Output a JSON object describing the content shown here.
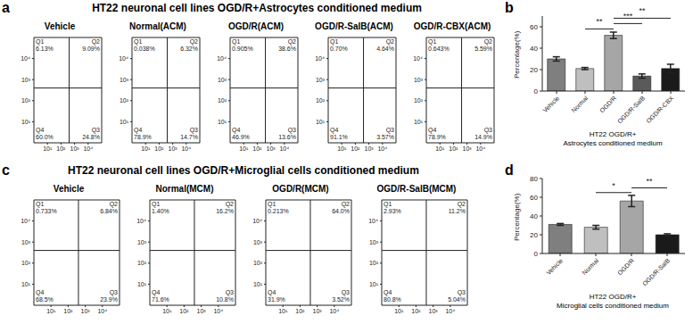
{
  "chart_data": [
    {
      "type": "quadrant",
      "panel": "a",
      "title": "HT22 neuronal cell lines OGD/R+Astrocytes conditioned medium",
      "log": true,
      "xlim": [
        1,
        100000
      ],
      "ylim": [
        1,
        100000
      ],
      "xticks": [
        {
          "value": 10,
          "label": "10¹"
        },
        {
          "value": 100,
          "label": "10²"
        },
        {
          "value": 1000,
          "label": "10³"
        },
        {
          "value": 10000,
          "label": "10⁴"
        }
      ],
      "yticks": [
        {
          "value": 10,
          "label": "10¹"
        },
        {
          "value": 100,
          "label": "10²"
        },
        {
          "value": 1000,
          "label": "10³"
        },
        {
          "value": 10000,
          "label": "10⁴"
        }
      ],
      "gate": [
        400,
        400
      ],
      "plots": [
        {
          "title": "Vehicle",
          "quadrants": [
            {
              "name": "Q1",
              "value": 6.13,
              "label": "6.13%"
            },
            {
              "name": "Q2",
              "value": 9.09,
              "label": "9.09%"
            },
            {
              "name": "Q3",
              "value": 24.8,
              "label": "24.8%"
            },
            {
              "name": "Q4",
              "value": 60.0,
              "label": "60.0%"
            }
          ]
        },
        {
          "title": "Normal(ACM)",
          "quadrants": [
            {
              "name": "Q1",
              "value": 0.038,
              "label": "0.038%"
            },
            {
              "name": "Q2",
              "value": 6.32,
              "label": "6.32%"
            },
            {
              "name": "Q3",
              "value": 14.7,
              "label": "14.7%"
            },
            {
              "name": "Q4",
              "value": 78.9,
              "label": "78.9%"
            }
          ]
        },
        {
          "title": "OGD/R(ACM)",
          "quadrants": [
            {
              "name": "Q1",
              "value": 0.905,
              "label": "0.905%"
            },
            {
              "name": "Q2",
              "value": 38.6,
              "label": "38.6%"
            },
            {
              "name": "Q3",
              "value": 13.6,
              "label": "13.6%"
            },
            {
              "name": "Q4",
              "value": 46.9,
              "label": "46.9%"
            }
          ]
        },
        {
          "title": "OGD/R-SalB(ACM)",
          "quadrants": [
            {
              "name": "Q1",
              "value": 0.7,
              "label": "0.70%"
            },
            {
              "name": "Q2",
              "value": 4.64,
              "label": "4.64%"
            },
            {
              "name": "Q3",
              "value": 3.57,
              "label": "3.57%"
            },
            {
              "name": "Q4",
              "value": 91.1,
              "label": "91.1%"
            }
          ]
        },
        {
          "title": "OGD/R-CBX(ACM)",
          "quadrants": [
            {
              "name": "Q1",
              "value": 0.643,
              "label": "0.643%"
            },
            {
              "name": "Q2",
              "value": 5.59,
              "label": "5.59%"
            },
            {
              "name": "Q3",
              "value": 14.9,
              "label": "14.9%"
            },
            {
              "name": "Q4",
              "value": 78.9,
              "label": "78.9%"
            }
          ]
        }
      ]
    },
    {
      "type": "bar",
      "panel": "b",
      "ylabel": "Percentage(%)",
      "xlabel": [
        "HT22 OGD/R+",
        "Astrocytes conditioned medium"
      ],
      "categories": [
        "Vehicle",
        "Normal",
        "OGD/R",
        "OGD/R-SalB",
        "OGD/R-CBX"
      ],
      "values": [
        30,
        21,
        52,
        14,
        21
      ],
      "errors": [
        2,
        1,
        3,
        2,
        4
      ],
      "colors": [
        "#7f7f7f",
        "#bfbfbf",
        "#a6a6a6",
        "#595959",
        "#1a1a1a"
      ],
      "ylim": [
        0,
        70
      ],
      "yticks": [
        0,
        20,
        40,
        60
      ],
      "grid": false,
      "annotations": [
        {
          "from": "Normal",
          "to": "OGD/R",
          "label": "**"
        },
        {
          "from": "OGD/R",
          "to": "OGD/R-SalB",
          "label": "***"
        },
        {
          "from": "OGD/R",
          "to": "OGD/R-CBX",
          "label": "**"
        }
      ]
    },
    {
      "type": "quadrant",
      "panel": "c",
      "title": "HT22 neuronal cell lines OGD/R+Microglial cells conditioned medium",
      "log": true,
      "xlim": [
        1,
        100000
      ],
      "ylim": [
        1,
        100000
      ],
      "xticks": [
        {
          "value": 10,
          "label": "10¹"
        },
        {
          "value": 100,
          "label": "10²"
        },
        {
          "value": 1000,
          "label": "10³"
        },
        {
          "value": 10000,
          "label": "10⁴"
        }
      ],
      "yticks": [
        {
          "value": 10,
          "label": "10¹"
        },
        {
          "value": 100,
          "label": "10²"
        },
        {
          "value": 1000,
          "label": "10³"
        },
        {
          "value": 10000,
          "label": "10⁴"
        }
      ],
      "gate": [
        400,
        400
      ],
      "plots": [
        {
          "title": "Vehicle",
          "quadrants": [
            {
              "name": "Q1",
              "value": 0.733,
              "label": "0.733%"
            },
            {
              "name": "Q2",
              "value": 6.84,
              "label": "6.84%"
            },
            {
              "name": "Q3",
              "value": 23.9,
              "label": "23.9%"
            },
            {
              "name": "Q4",
              "value": 68.5,
              "label": "68.5%"
            }
          ]
        },
        {
          "title": "Normal(MCM)",
          "quadrants": [
            {
              "name": "Q1",
              "value": 1.4,
              "label": "1.40%"
            },
            {
              "name": "Q2",
              "value": 16.2,
              "label": "16.2%"
            },
            {
              "name": "Q3",
              "value": 10.8,
              "label": "10.8%"
            },
            {
              "name": "Q4",
              "value": 71.6,
              "label": "71.6%"
            }
          ]
        },
        {
          "title": "OGD/R(MCM)",
          "quadrants": [
            {
              "name": "Q1",
              "value": 0.213,
              "label": "0.213%"
            },
            {
              "name": "Q2",
              "value": 64.0,
              "label": "64.0%"
            },
            {
              "name": "Q3",
              "value": 3.52,
              "label": "3.52%"
            },
            {
              "name": "Q4",
              "value": 31.9,
              "label": "31.9%"
            }
          ]
        },
        {
          "title": "OGD/R-SalB(MCM)",
          "quadrants": [
            {
              "name": "Q1",
              "value": 2.93,
              "label": "2.93%"
            },
            {
              "name": "Q2",
              "value": 11.2,
              "label": "11.2%"
            },
            {
              "name": "Q3",
              "value": 5.04,
              "label": "5.04%"
            },
            {
              "name": "Q4",
              "value": 80.8,
              "label": "80.8%"
            }
          ]
        }
      ]
    },
    {
      "type": "bar",
      "panel": "d",
      "ylabel": "Percentage(%)",
      "xlabel": [
        "HT22 OGD/R+",
        "Microglial cells conditioned medium"
      ],
      "categories": [
        "Vehicle",
        "Normal",
        "OGD/R",
        "OGD/R-SalB"
      ],
      "values": [
        31,
        28,
        56,
        20
      ],
      "errors": [
        1,
        2,
        6,
        1
      ],
      "colors": [
        "#7f7f7f",
        "#bfbfbf",
        "#a6a6a6",
        "#1a1a1a"
      ],
      "ylim": [
        0,
        80
      ],
      "yticks": [
        0,
        20,
        40,
        60,
        80
      ],
      "grid": false,
      "annotations": [
        {
          "from": "Normal",
          "to": "OGD/R",
          "label": "*"
        },
        {
          "from": "OGD/R",
          "to": "OGD/R-SalB",
          "label": "**"
        }
      ]
    }
  ]
}
